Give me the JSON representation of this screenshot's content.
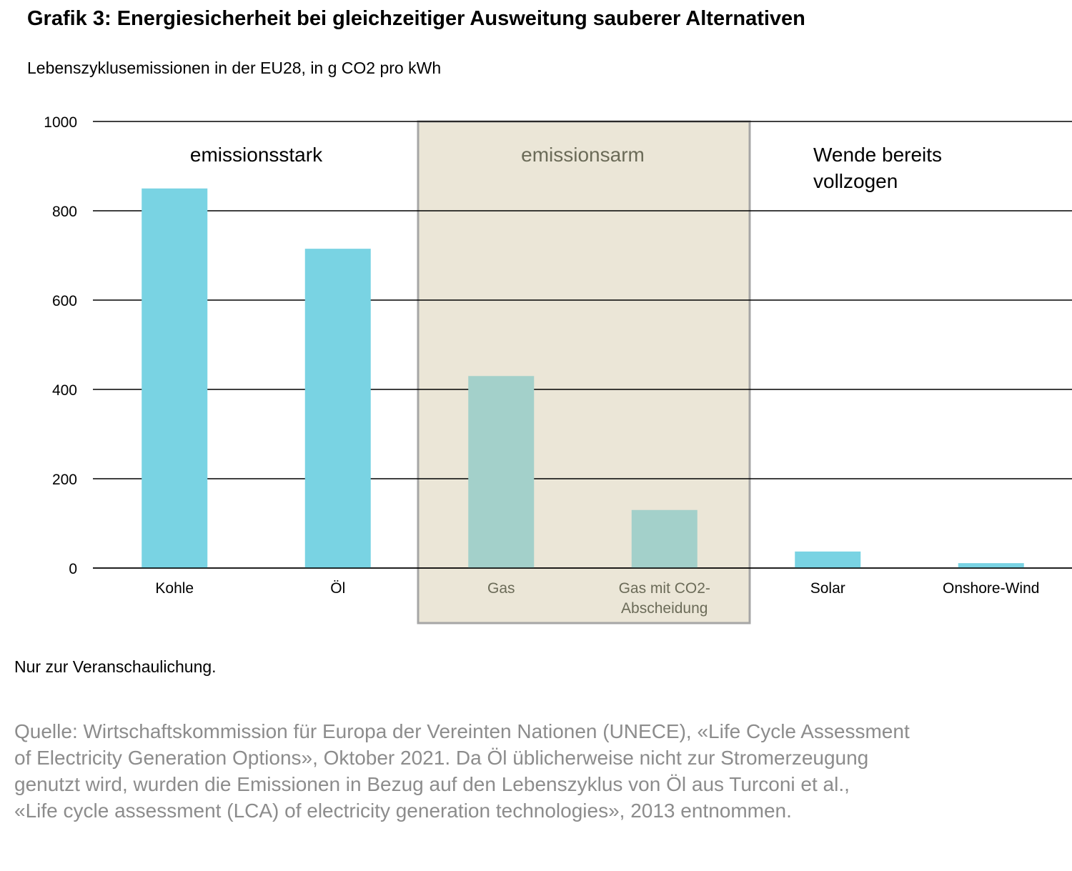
{
  "title": "Grafik 3: Energiesicherheit bei gleichzeitiger Ausweitung sauberer Alternativen",
  "subtitle": "Lebenszyklusemissionen in der EU28, in g CO2 pro kWh",
  "note": "Nur zur Veranschaulichung.",
  "source_lines": [
    "Quelle: Wirtschaftskommission für Europa der Vereinten Nationen (UNECE), «Life Cycle Assessment",
    "of Electricity Generation Options», Oktober 2021. Da Öl üblicherweise nicht zur Stromerzeugung",
    "genutzt wird, wurden die Emissionen in Bezug auf den Lebenszyklus von Öl aus Turconi et al.,",
    "«Life cycle assessment (LCA) of electricity generation technologies», 2013 entnommen."
  ],
  "colors": {
    "bar": "#79d3e3",
    "bar_low": "#a3d0ca",
    "highlight_fill": "#ebe6d7",
    "highlight_border": "#a6a6a6",
    "highlight_text": "#6b6b58"
  },
  "chart_data": {
    "type": "bar",
    "categories": [
      "Kohle",
      "Öl",
      "Gas",
      "Gas mit CO2-Abscheidung",
      "Solar",
      "Onshore-Wind"
    ],
    "category_lines": [
      [
        "Kohle"
      ],
      [
        "Öl"
      ],
      [
        "Gas"
      ],
      [
        "Gas mit CO2-",
        "Abscheidung"
      ],
      [
        "Solar"
      ],
      [
        "Onshore-Wind"
      ]
    ],
    "values": [
      850,
      715,
      430,
      130,
      37,
      11
    ],
    "ylim": [
      0,
      1000
    ],
    "yticks": [
      0,
      200,
      400,
      600,
      800,
      1000
    ],
    "grid": true,
    "groups": [
      {
        "label_lines": [
          "emissionsstark"
        ],
        "categories": [
          0,
          1
        ],
        "highlight": false
      },
      {
        "label_lines": [
          "emissionsarm"
        ],
        "categories": [
          2,
          3
        ],
        "highlight": true
      },
      {
        "label_lines": [
          "Wende bereits",
          "vollzogen"
        ],
        "categories": [
          4,
          5
        ],
        "highlight": false
      }
    ]
  }
}
